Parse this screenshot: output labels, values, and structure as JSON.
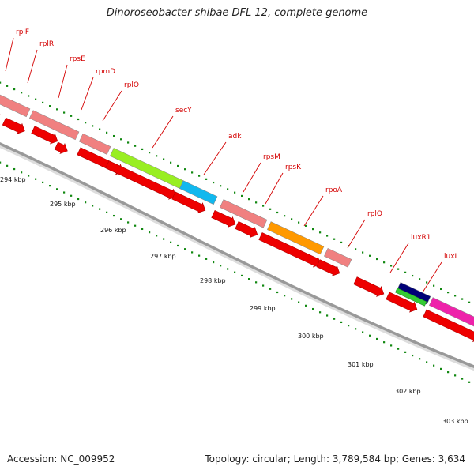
{
  "title": "Dinoroseobacter shibae DFL 12, complete genome",
  "footer": {
    "accession": "Accession: NC_009952",
    "summary": "Topology: circular; Length: 3,789,584 bp; Genes: 3,634"
  },
  "scale": {
    "unit": "kbp",
    "ticks": [
      "294 kbp",
      "295 kbp",
      "296 kbp",
      "297 kbp",
      "298 kbp",
      "299 kbp",
      "300 kbp",
      "301 kbp",
      "302 kbp",
      "303 kbp"
    ]
  },
  "colors": {
    "label": "#d40000",
    "gene_arrow": "#ee0000",
    "ribosomal_feature": "#f08080",
    "secY": "#99ee22",
    "adk": "#11b8ee",
    "rpoA": "#ff9900",
    "luxR1_upper": "#000077",
    "luxR1_lower": "#33cc33",
    "luxI": "#ee22aa",
    "backbone": "#999999",
    "dots": "#118811"
  },
  "gene_labels": [
    "rplF",
    "rplR",
    "rpsE",
    "rpmD",
    "rplO",
    "secY",
    "adk",
    "rpsM",
    "rpsK",
    "rpoA",
    "rplQ",
    "luxR1",
    "luxI"
  ]
}
